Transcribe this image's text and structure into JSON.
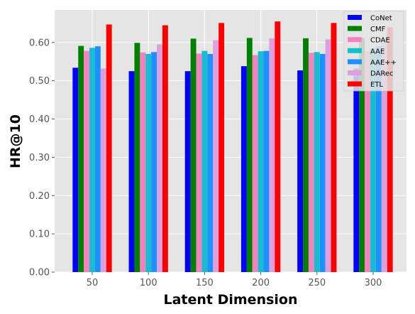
{
  "chart_data": {
    "type": "bar",
    "title": "",
    "xlabel": "Latent Dimension",
    "ylabel": "HR@10",
    "categories": [
      "50",
      "100",
      "150",
      "200",
      "250",
      "300"
    ],
    "ylim": [
      0,
      0.685
    ],
    "yticks": [
      "0.00",
      "0.10",
      "0.20",
      "0.30",
      "0.40",
      "0.50",
      "0.60"
    ],
    "grid": true,
    "legend_position": "top-right",
    "series": [
      {
        "name": "CoNet",
        "color": "#0000ff",
        "values": [
          0.534,
          0.525,
          0.525,
          0.538,
          0.527,
          0.532
        ]
      },
      {
        "name": "CMF",
        "color": "#008000",
        "values": [
          0.591,
          0.599,
          0.61,
          0.612,
          0.611,
          0.612
        ]
      },
      {
        "name": "CDAE",
        "color": "#f781bf",
        "values": [
          0.578,
          0.574,
          0.571,
          0.567,
          0.573,
          0.578
        ]
      },
      {
        "name": "AAE",
        "color": "#17becf",
        "values": [
          0.586,
          0.57,
          0.578,
          0.577,
          0.575,
          0.585
        ]
      },
      {
        "name": "AAE++",
        "color": "#1e90ff",
        "values": [
          0.59,
          0.575,
          0.57,
          0.578,
          0.57,
          0.59
        ]
      },
      {
        "name": "DARec",
        "color": "#dda0dd",
        "values": [
          0.532,
          0.595,
          0.606,
          0.611,
          0.608,
          0.61
        ]
      },
      {
        "name": "ETL",
        "color": "#ff0000",
        "values": [
          0.647,
          0.645,
          0.651,
          0.655,
          0.651,
          0.64
        ]
      }
    ]
  }
}
